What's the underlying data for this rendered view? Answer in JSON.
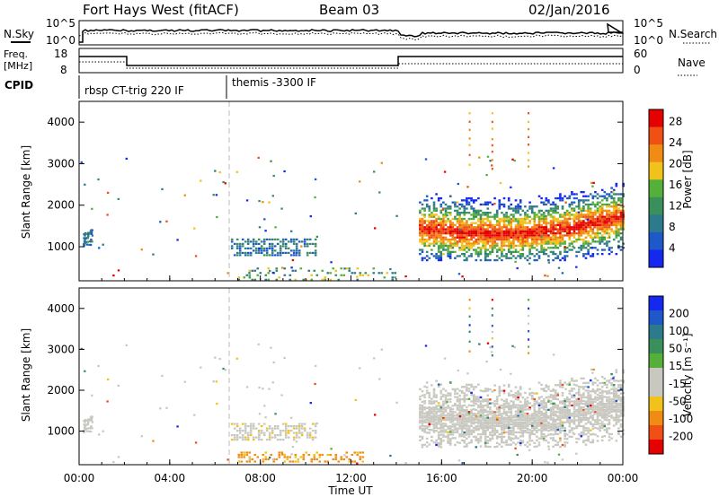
{
  "header": {
    "station": "Fort Hays West (fitACF)",
    "beam": "Beam 03",
    "date": "02/Jan/2016"
  },
  "noise_panel": {
    "left_label": "N.Sky",
    "right_label": "N.Search",
    "left_ticks": [
      "10^5",
      "10^0"
    ],
    "right_ticks": [
      "10^5",
      "10^0"
    ]
  },
  "freq_panel": {
    "left_label_line1": "Freq.",
    "left_label_line2": "[MHz]",
    "right_label": "Nave",
    "left_ticks": [
      "18",
      "8"
    ],
    "right_ticks": [
      "60",
      "0"
    ]
  },
  "cpid_panel": {
    "label": "CPID",
    "programs": [
      {
        "name": "rbsp CT-trig 220 IF",
        "start": 0.0,
        "end": 6.5
      },
      {
        "name": "themis -3300 IF",
        "start": 6.5,
        "end": 24.0
      }
    ]
  },
  "colors": {
    "power_scale": [
      "#1428f0",
      "#1f58c8",
      "#2d7a8c",
      "#3a8f5a",
      "#55b03a",
      "#f0c21a",
      "#f08c14",
      "#f05014",
      "#e60000"
    ],
    "velocity_scale": [
      "#e60000",
      "#f05014",
      "#f08c14",
      "#f0c21a",
      "#c8c8c0",
      "#c8c8c0",
      "#55b03a",
      "#3a8f5a",
      "#2d7a8c",
      "#1f58c8",
      "#1428f0"
    ],
    "ground_scatter": "#c8c8c0"
  },
  "chart_data": [
    {
      "type": "heatmap",
      "panel": "power",
      "xlabel": "",
      "ylabel": "Slant Range [km]",
      "xlim": [
        0,
        24
      ],
      "ylim": [
        180,
        4500
      ],
      "yticks": [
        1000,
        2000,
        3000,
        4000
      ],
      "colorbar": {
        "label": "Power [dB]",
        "ticks": [
          "4",
          "8",
          "12",
          "16",
          "20",
          "24",
          "28"
        ],
        "range": [
          0,
          30
        ]
      },
      "features": [
        {
          "description": "near-range echoes",
          "t_start": 6.7,
          "t_end": 10.5,
          "range_min": 800,
          "range_max": 1200,
          "value_db": 6
        },
        {
          "description": "low-range echoes",
          "t_start": 7.0,
          "t_end": 14.0,
          "range_min": 200,
          "range_max": 500,
          "value_db": 12
        },
        {
          "description": "strong band",
          "t_start": 15.0,
          "t_end": 24.0,
          "range_min": 900,
          "range_max": 2600,
          "peak_db": 28
        }
      ]
    },
    {
      "type": "heatmap",
      "panel": "velocity",
      "xlabel": "Time UT",
      "ylabel": "Slant Range [km]",
      "xlim": [
        0,
        24
      ],
      "ylim": [
        180,
        4500
      ],
      "yticks": [
        1000,
        2000,
        3000,
        4000
      ],
      "xticks": [
        "00:00",
        "04:00",
        "08:00",
        "12:00",
        "16:00",
        "20:00",
        "00:00"
      ],
      "colorbar": {
        "label": "Velocity [m s⁻¹]",
        "ticks": [
          "200",
          "100",
          "50",
          "15",
          "-15",
          "-50",
          "-100",
          "-200"
        ]
      },
      "features": [
        {
          "description": "ground scatter near range",
          "t_start": 6.7,
          "t_end": 10.5,
          "range_min": 800,
          "range_max": 1200,
          "value": 0
        },
        {
          "description": "negative velocity low range",
          "t_start": 7.0,
          "t_end": 12.5,
          "range_min": 250,
          "range_max": 500,
          "value": -60
        },
        {
          "description": "ground scatter band",
          "t_start": 15.0,
          "t_end": 24.0,
          "range_min": 900,
          "range_max": 2600,
          "value": 0
        }
      ]
    }
  ]
}
